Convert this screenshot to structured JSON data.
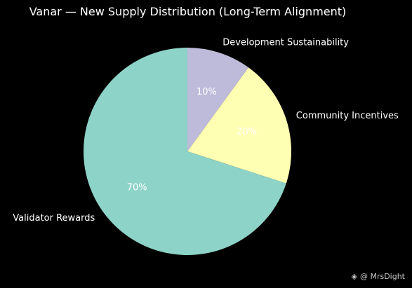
{
  "chart_data": {
    "type": "pie",
    "title": "Vanar — New Supply Distribution (Long-Term Alignment)",
    "start_angle_deg": 90,
    "direction": "clockwise",
    "slices": [
      {
        "label": "Development Sustainability",
        "value": 10,
        "pct_label": "10%",
        "color": "#bebada"
      },
      {
        "label": "Community Incentives",
        "value": 20,
        "pct_label": "20%",
        "color": "#ffffb3"
      },
      {
        "label": "Validator Rewards",
        "value": 70,
        "pct_label": "70%",
        "color": "#8dd3c7"
      }
    ]
  },
  "watermark": {
    "icon": "binance-logo-icon",
    "text": "@ MrsDight"
  }
}
